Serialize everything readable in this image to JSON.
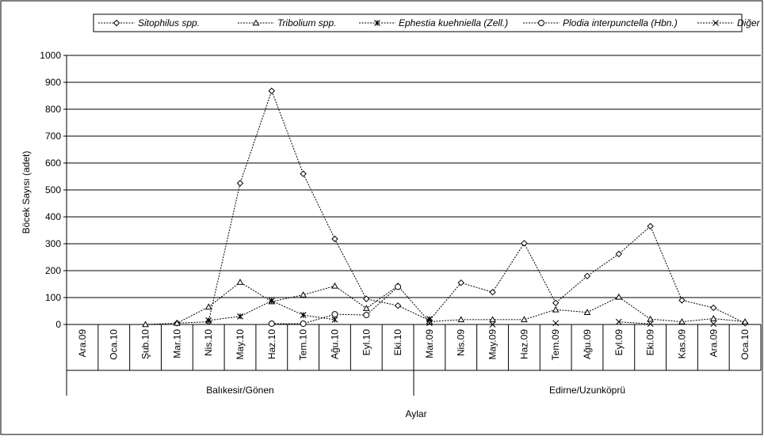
{
  "chart_data": {
    "type": "line",
    "ylabel": "Böcek Sayısı (adet)",
    "xlabel": "Aylar",
    "ylim": [
      0,
      1000
    ],
    "yticks": [
      0,
      100,
      200,
      300,
      400,
      500,
      600,
      700,
      800,
      900,
      1000
    ],
    "grid": "horizontal",
    "legend_position": "top",
    "categories": [
      "Ara.09",
      "Oca.10",
      "Şub.10",
      "Mar.10",
      "Nis.10",
      "May.10",
      "Haz.10",
      "Tem.10",
      "Ağu.10",
      "Eyl.10",
      "Eki.10",
      "Mar.09",
      "Nis.09",
      "May.09",
      "Haz.09",
      "Tem.09",
      "Ağu.09",
      "Eyl.09",
      "Eki.09",
      "Kas.09",
      "Ara.09",
      "Oca.10"
    ],
    "groups": [
      {
        "label": "Balıkesir/Gönen",
        "start": 0,
        "end": 10
      },
      {
        "label": "Edirne/Uzunköprü",
        "start": 11,
        "end": 21
      }
    ],
    "series": [
      {
        "name": "Sitophilus spp.",
        "marker": "diamond",
        "color": "#000000",
        "values": [
          null,
          null,
          null,
          5,
          10,
          525,
          868,
          560,
          318,
          95,
          70,
          15,
          155,
          120,
          302,
          80,
          180,
          262,
          365,
          90,
          62,
          5
        ]
      },
      {
        "name": "Tribolium spp.",
        "marker": "triangle",
        "color": "#000000",
        "values": [
          null,
          null,
          0,
          5,
          65,
          157,
          85,
          110,
          143,
          60,
          143,
          10,
          18,
          18,
          18,
          55,
          45,
          102,
          20,
          10,
          22,
          10
        ]
      },
      {
        "name": "Ephestia kuehniella (Zell.)",
        "marker": "star",
        "color": "#000000",
        "values": [
          null,
          null,
          null,
          null,
          15,
          30,
          88,
          35,
          18,
          null,
          null,
          20,
          null,
          null,
          null,
          null,
          null,
          null,
          null,
          null,
          null,
          null
        ]
      },
      {
        "name": "Plodia interpunctella (Hbn.)",
        "marker": "circle",
        "color": "#000000",
        "values": [
          null,
          null,
          null,
          null,
          null,
          null,
          3,
          3,
          38,
          35,
          140,
          null,
          null,
          null,
          null,
          null,
          null,
          null,
          null,
          null,
          null,
          null
        ]
      },
      {
        "name": "Diğer",
        "marker": "x",
        "color": "#000000",
        "values": [
          null,
          null,
          null,
          null,
          null,
          null,
          null,
          null,
          null,
          null,
          null,
          5,
          null,
          0,
          null,
          5,
          null,
          10,
          2,
          null,
          2,
          null
        ]
      }
    ]
  }
}
